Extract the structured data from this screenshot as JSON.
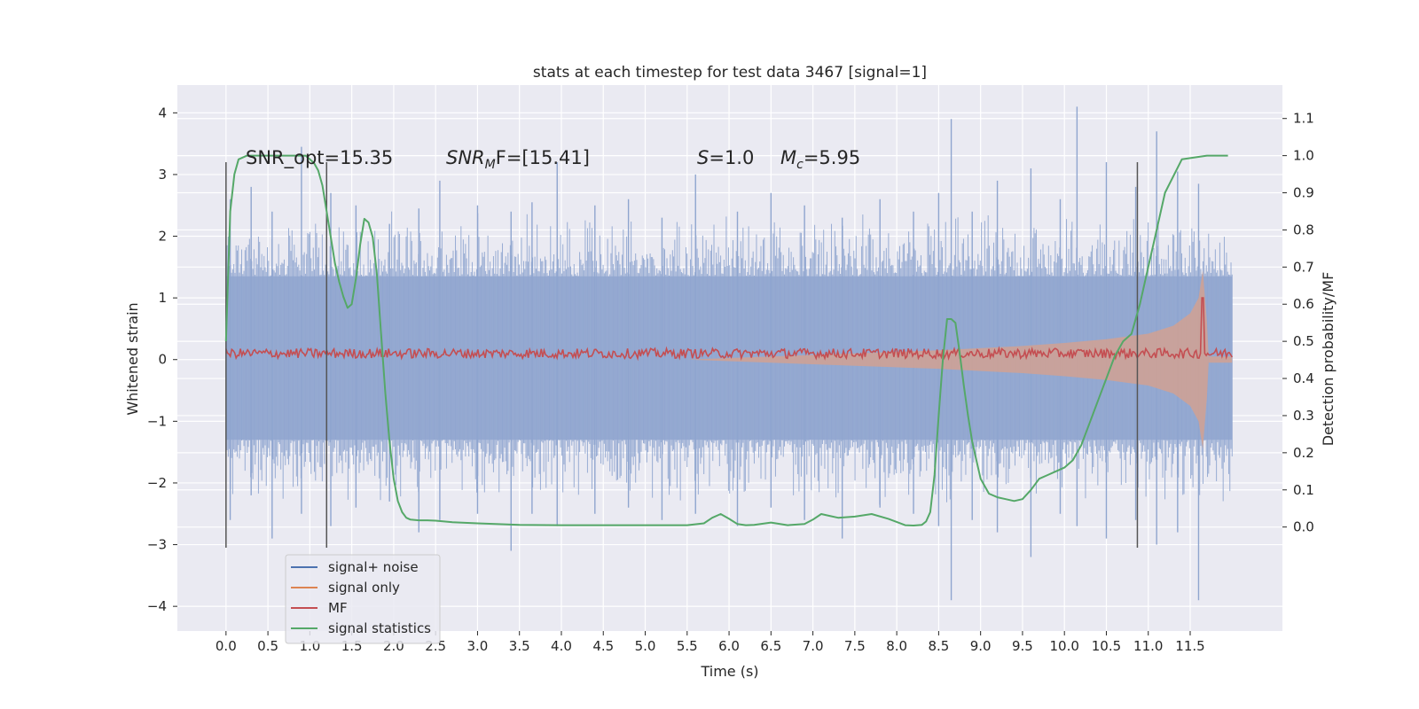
{
  "chart_data": {
    "type": "line",
    "title": "stats at each timestep for test data 3467 [signal=1]",
    "xlabel": "Time (s)",
    "ylabel": "Whitened strain",
    "ylabel_right": "Detection probability/MF",
    "xlim": [
      -0.58,
      12.6
    ],
    "ylim": [
      -4.4,
      4.45
    ],
    "ylim_right": [
      -0.28,
      1.19
    ],
    "x_ticks": [
      "0.0",
      "0.5",
      "1.0",
      "1.5",
      "2.0",
      "2.5",
      "3.0",
      "3.5",
      "4.0",
      "4.5",
      "5.0",
      "5.5",
      "6.0",
      "6.5",
      "7.0",
      "7.5",
      "8.0",
      "8.5",
      "9.0",
      "9.5",
      "10.0",
      "10.5",
      "11.0",
      "11.5"
    ],
    "y_ticks": [
      "4",
      "3",
      "2",
      "1",
      "0",
      "−1",
      "−2",
      "−3",
      "−4"
    ],
    "y_ticks_right": [
      "1.1",
      "1.0",
      "0.9",
      "0.8",
      "0.7",
      "0.6",
      "0.5",
      "0.4",
      "0.3",
      "0.2",
      "0.1",
      "0.0"
    ],
    "grid": true,
    "legend_position": "lower-left",
    "annotations": {
      "snr_opt": "SNR_opt=15.35",
      "snr_mf_sym": "SNR",
      "snr_mf_sub": "M",
      "snr_mf_rest": "F=[15.41]",
      "s_sym": "S",
      "s_rest": "=1.0",
      "mc_sym": "M",
      "mc_sub": "c",
      "mc_rest": "=5.95"
    },
    "vertical_lines_x": [
      0.0,
      1.2,
      10.87
    ],
    "vertical_lines_yrange": [
      -3.05,
      3.2
    ],
    "series": [
      {
        "name": "signal+ noise",
        "color": "#4c72b0",
        "axis": "left",
        "envelope_x": [
          0.0,
          12.0
        ],
        "envelope_y": [
          -1.3,
          1.35
        ],
        "peaks_x": [
          0.05,
          0.3,
          0.55,
          0.9,
          1.25,
          1.55,
          1.95,
          2.3,
          2.55,
          3.0,
          3.4,
          3.65,
          3.95,
          4.4,
          4.8,
          5.2,
          5.6,
          6.1,
          6.5,
          6.9,
          7.35,
          7.8,
          8.2,
          8.5,
          8.65,
          8.9,
          9.2,
          9.6,
          9.95,
          10.15,
          10.5,
          10.85,
          11.1,
          11.35,
          11.6
        ],
        "peaks_hi": [
          2.6,
          2.8,
          2.4,
          3.45,
          2.7,
          2.5,
          2.2,
          2.45,
          2.9,
          2.5,
          2.4,
          2.55,
          3.2,
          2.5,
          2.6,
          2.3,
          3.0,
          2.4,
          2.7,
          2.5,
          2.3,
          2.6,
          2.4,
          2.7,
          3.9,
          2.4,
          2.9,
          3.1,
          2.6,
          4.1,
          3.2,
          2.8,
          3.7,
          3.05,
          2.85
        ],
        "peaks_lo": [
          -2.6,
          -2.2,
          -2.9,
          -2.5,
          -2.7,
          -2.4,
          -2.3,
          -2.8,
          -2.6,
          -2.5,
          -3.1,
          -2.5,
          -2.7,
          -2.5,
          -2.4,
          -2.6,
          -2.5,
          -2.7,
          -2.4,
          -2.6,
          -2.9,
          -2.4,
          -2.5,
          -2.7,
          -3.9,
          -2.6,
          -2.8,
          -3.2,
          -2.5,
          -2.7,
          -2.9,
          -2.6,
          -3.0,
          -2.8,
          -3.9
        ]
      },
      {
        "name": "signal only",
        "color": "#dd8452",
        "axis": "left",
        "x": [
          5.5,
          6.5,
          7.5,
          8.5,
          9.5,
          10.0,
          10.5,
          11.0,
          11.3,
          11.5,
          11.6,
          11.65,
          11.7,
          11.72
        ],
        "amplitude": [
          0.0,
          0.05,
          0.1,
          0.15,
          0.22,
          0.27,
          0.33,
          0.42,
          0.55,
          0.75,
          1.0,
          1.45,
          0.6,
          0.05
        ],
        "post_merger_fill_x": [
          11.72,
          12.0
        ],
        "post_merger_fill_amp": 0.05
      },
      {
        "name": "MF",
        "color": "#c44e52",
        "axis": "left",
        "x_range": [
          0.0,
          12.0
        ],
        "baseline": 0.1,
        "noise_amplitude": 0.08,
        "spike_x": 11.65,
        "spike_y": 1.0
      },
      {
        "name": "signal statistics",
        "color": "#55a868",
        "axis": "right",
        "x": [
          0.0,
          0.05,
          0.1,
          0.15,
          0.25,
          0.4,
          0.6,
          0.8,
          0.9,
          0.95,
          1.0,
          1.05,
          1.1,
          1.15,
          1.2,
          1.25,
          1.3,
          1.35,
          1.4,
          1.45,
          1.5,
          1.55,
          1.6,
          1.65,
          1.7,
          1.75,
          1.8,
          1.85,
          1.9,
          1.95,
          2.0,
          2.05,
          2.1,
          2.15,
          2.2,
          2.3,
          2.4,
          2.5,
          2.7,
          3.0,
          3.5,
          4.0,
          4.5,
          5.0,
          5.5,
          5.7,
          5.8,
          5.9,
          6.0,
          6.1,
          6.2,
          6.3,
          6.5,
          6.7,
          6.9,
          7.0,
          7.1,
          7.2,
          7.3,
          7.5,
          7.7,
          7.9,
          8.1,
          8.2,
          8.3,
          8.35,
          8.4,
          8.45,
          8.5,
          8.55,
          8.6,
          8.65,
          8.7,
          8.75,
          8.8,
          8.85,
          8.9,
          8.95,
          9.0,
          9.05,
          9.1,
          9.2,
          9.3,
          9.4,
          9.5,
          9.6,
          9.7,
          9.8,
          9.9,
          10.0,
          10.1,
          10.2,
          10.3,
          10.4,
          10.5,
          10.6,
          10.7,
          10.8,
          10.9,
          11.0,
          11.1,
          11.2,
          11.4,
          11.7,
          11.95
        ],
        "y": [
          0.5,
          0.85,
          0.95,
          0.99,
          1.0,
          1.0,
          1.0,
          1.0,
          1.0,
          1.0,
          0.99,
          0.98,
          0.96,
          0.92,
          0.85,
          0.78,
          0.71,
          0.66,
          0.62,
          0.59,
          0.6,
          0.67,
          0.76,
          0.83,
          0.82,
          0.78,
          0.68,
          0.52,
          0.36,
          0.23,
          0.13,
          0.07,
          0.04,
          0.025,
          0.02,
          0.018,
          0.018,
          0.017,
          0.013,
          0.01,
          0.006,
          0.005,
          0.005,
          0.005,
          0.005,
          0.01,
          0.025,
          0.035,
          0.022,
          0.008,
          0.005,
          0.006,
          0.012,
          0.005,
          0.008,
          0.02,
          0.035,
          0.03,
          0.025,
          0.028,
          0.035,
          0.022,
          0.005,
          0.004,
          0.006,
          0.015,
          0.04,
          0.14,
          0.3,
          0.45,
          0.56,
          0.56,
          0.55,
          0.47,
          0.38,
          0.3,
          0.23,
          0.18,
          0.13,
          0.11,
          0.09,
          0.08,
          0.075,
          0.07,
          0.075,
          0.1,
          0.13,
          0.14,
          0.15,
          0.16,
          0.18,
          0.22,
          0.28,
          0.34,
          0.4,
          0.46,
          0.5,
          0.52,
          0.6,
          0.7,
          0.8,
          0.9,
          0.99,
          1.0,
          1.0
        ]
      }
    ]
  }
}
